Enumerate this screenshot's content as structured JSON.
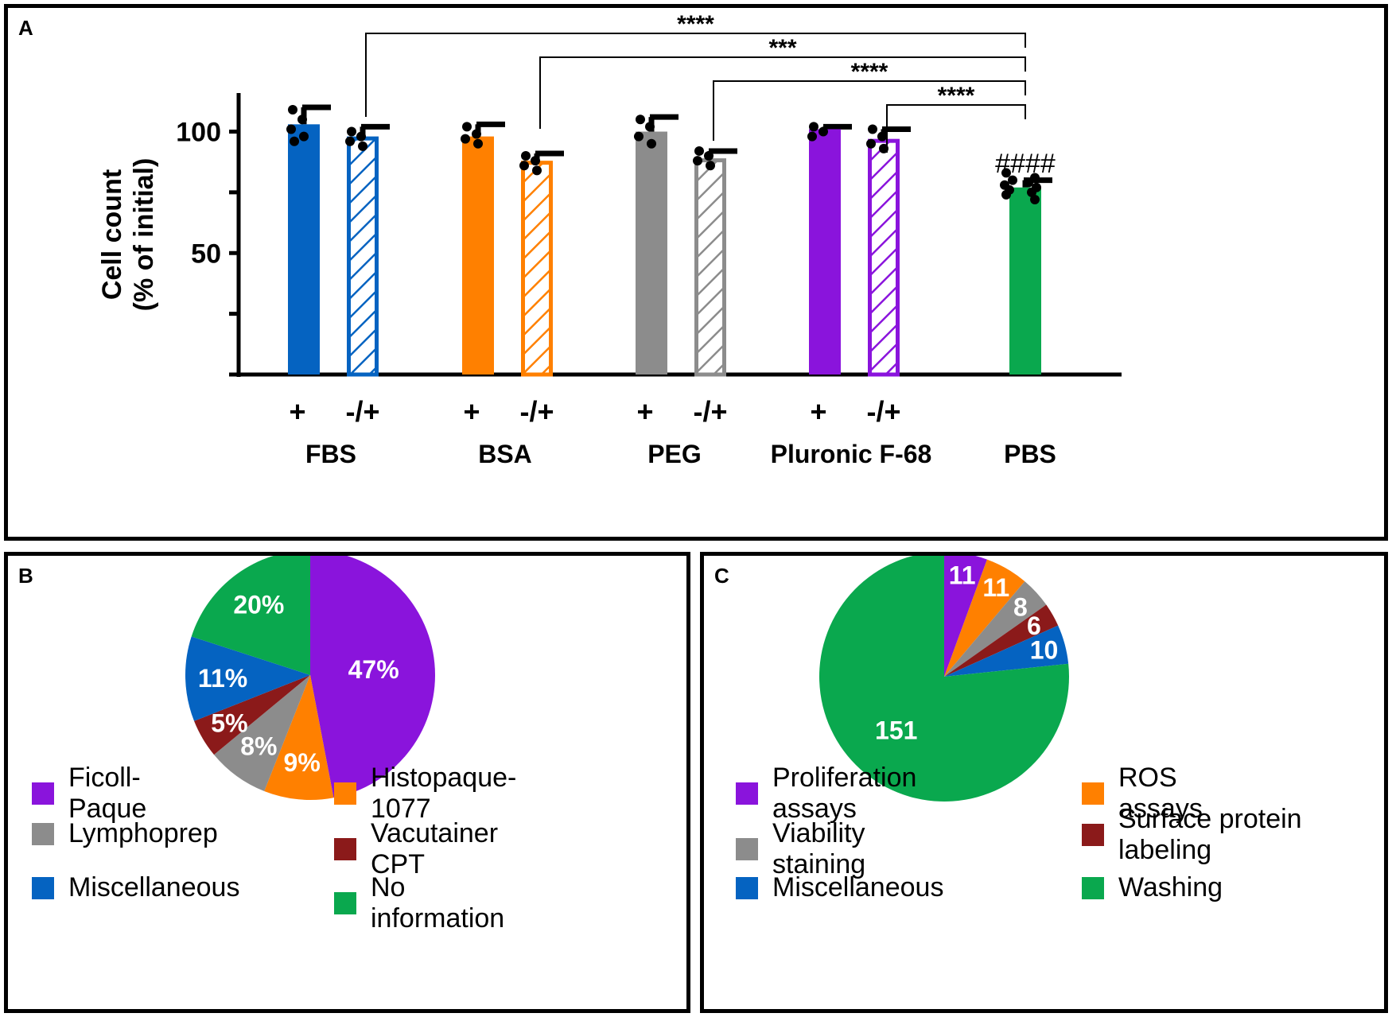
{
  "colors": {
    "fbs": "#0563C1",
    "bsa": "#FF8000",
    "peg": "#8C8C8C",
    "pluronic": "#8A14DC",
    "pbs": "#0AA84E",
    "vacutainer": "#8B1A1A"
  },
  "panel_a": {
    "letter": "A"
  },
  "panel_b": {
    "letter": "B"
  },
  "panel_c": {
    "letter": "C"
  },
  "chart_data": [
    {
      "id": "A",
      "type": "bar",
      "ylabel": "Cell count",
      "ylabel2": "(% of initial)",
      "ylim": [
        0,
        116
      ],
      "yticks": [
        100,
        50
      ],
      "ytick_labels": [
        "100",
        "50"
      ],
      "minor_ticks": [
        25,
        75
      ],
      "groups": [
        "FBS",
        "BSA",
        "PEG",
        "Pluronic F-68",
        "PBS"
      ],
      "bars": [
        {
          "group": "FBS",
          "sub": "+",
          "value": 103,
          "err": 7,
          "pattern": "solid",
          "color": "#0563C1",
          "points": [
            109,
            105,
            101,
            98,
            96
          ]
        },
        {
          "group": "FBS",
          "sub": "-/+",
          "value": 98,
          "err": 4,
          "pattern": "hatched",
          "color": "#0563C1",
          "points": [
            100,
            98,
            96,
            94
          ]
        },
        {
          "group": "BSA",
          "sub": "+",
          "value": 98,
          "err": 5,
          "pattern": "solid",
          "color": "#FF8000",
          "points": [
            102,
            99,
            97,
            95
          ]
        },
        {
          "group": "BSA",
          "sub": "-/+",
          "value": 88,
          "err": 3,
          "pattern": "hatched",
          "color": "#FF8000",
          "points": [
            90,
            88,
            86,
            84
          ]
        },
        {
          "group": "PEG",
          "sub": "+",
          "value": 100,
          "err": 6,
          "pattern": "solid",
          "color": "#8C8C8C",
          "points": [
            105,
            102,
            98,
            95
          ]
        },
        {
          "group": "PEG",
          "sub": "-/+",
          "value": 89,
          "err": 3,
          "pattern": "hatched",
          "color": "#8C8C8C",
          "points": [
            92,
            90,
            88,
            86
          ]
        },
        {
          "group": "Pluronic F-68",
          "sub": "+",
          "value": 101,
          "err": 1,
          "pattern": "solid",
          "color": "#8A14DC",
          "points": [
            102,
            100,
            98
          ]
        },
        {
          "group": "Pluronic F-68",
          "sub": "-/+",
          "value": 97,
          "err": 4,
          "pattern": "hatched",
          "color": "#8A14DC",
          "points": [
            101,
            98,
            95,
            93
          ]
        },
        {
          "group": "PBS",
          "sub": "",
          "value": 77,
          "err": 3,
          "pattern": "solid",
          "color": "#0AA84E",
          "points": [
            83,
            81,
            80,
            79,
            78,
            77,
            76,
            75,
            74,
            72
          ]
        }
      ],
      "significance": [
        {
          "from_bar": 1,
          "to_bar": 8,
          "label": "****"
        },
        {
          "from_bar": 3,
          "to_bar": 8,
          "label": "***"
        },
        {
          "from_bar": 5,
          "to_bar": 8,
          "label": "****"
        },
        {
          "from_bar": 7,
          "to_bar": 8,
          "label": "****"
        }
      ],
      "pbs_annotation": "####"
    },
    {
      "id": "B",
      "type": "pie",
      "slices": [
        {
          "label": "Ficoll-Paque",
          "value": 47,
          "display": "47%",
          "color": "#8A14DC"
        },
        {
          "label": "Histopaque-1077",
          "value": 9,
          "display": "9%",
          "color": "#FF8000"
        },
        {
          "label": "Lymphoprep",
          "value": 8,
          "display": "8%",
          "color": "#8C8C8C"
        },
        {
          "label": "Vacutainer CPT",
          "value": 5,
          "display": "5%",
          "color": "#8B1A1A"
        },
        {
          "label": "Miscellaneous",
          "value": 11,
          "display": "11%",
          "color": "#0563C1"
        },
        {
          "label": "No information",
          "value": 20,
          "display": "20%",
          "color": "#0AA84E"
        }
      ]
    },
    {
      "id": "C",
      "type": "pie",
      "slices": [
        {
          "label": "Proliferation assays",
          "value": 11,
          "display": "11",
          "color": "#8A14DC"
        },
        {
          "label": "ROS assays",
          "value": 11,
          "display": "11",
          "color": "#FF8000"
        },
        {
          "label": "Viability staining",
          "value": 8,
          "display": "8",
          "color": "#8C8C8C"
        },
        {
          "label": "Surface protein labeling",
          "value": 6,
          "display": "6",
          "color": "#8B1A1A"
        },
        {
          "label": "Miscellaneous",
          "value": 10,
          "display": "10",
          "color": "#0563C1"
        },
        {
          "label": "Washing",
          "value": 151,
          "display": "151",
          "color": "#0AA84E"
        }
      ]
    }
  ]
}
